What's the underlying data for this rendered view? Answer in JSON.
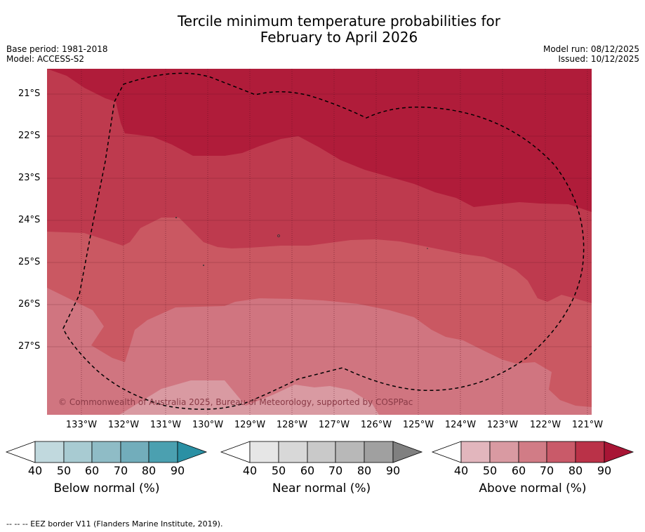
{
  "title_line1": "Tercile minimum temperature probabilities for",
  "title_line2": "February to April 2026",
  "base_period": "Base period: 1981-2018",
  "model": "Model: ACCESS-S2",
  "model_run": "Model run: 08/12/2025",
  "issued": "Issued: 10/12/2025",
  "map": {
    "lat_labels": [
      "21°S",
      "22°S",
      "23°S",
      "24°S",
      "25°S",
      "26°S",
      "27°S"
    ],
    "lon_labels": [
      "133°W",
      "132°W",
      "131°W",
      "130°W",
      "129°W",
      "128°W",
      "127°W",
      "126°W",
      "125°W",
      "124°W",
      "123°W",
      "122°W",
      "121°W"
    ],
    "copyright": "© Commonwealth of Australia 2025, Bureau of Meteorology, supported by COSPPac",
    "colors": {
      "above_90": "#b01c3a",
      "above_80": "#be3a4e",
      "above_70": "#ca5862",
      "above_60": "#d07580",
      "above_50": "#d99aa2"
    }
  },
  "colorbars": [
    {
      "title": "Below normal (%)",
      "ticks": [
        "40",
        "50",
        "60",
        "70",
        "80",
        "90"
      ],
      "colors": [
        "#c1d9de",
        "#a8cbd2",
        "#8fbcc6",
        "#72adbb",
        "#4ba0b0",
        "#2a90a4"
      ]
    },
    {
      "title": "Near normal (%)",
      "ticks": [
        "40",
        "50",
        "60",
        "70",
        "80",
        "90"
      ],
      "colors": [
        "#e6e6e6",
        "#d8d8d8",
        "#c9c9c9",
        "#b8b8b8",
        "#a0a0a0",
        "#808080"
      ]
    },
    {
      "title": "Above normal (%)",
      "ticks": [
        "40",
        "50",
        "60",
        "70",
        "80",
        "90"
      ],
      "colors": [
        "#e2b6bd",
        "#d99aa2",
        "#d17c86",
        "#c95a69",
        "#ba3248",
        "#a81535"
      ]
    }
  ],
  "footnote": "--  --  -- EEZ border V11 (Flanders Marine Institute, 2019)."
}
